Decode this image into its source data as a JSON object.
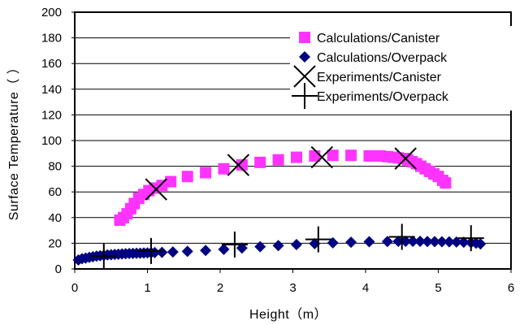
{
  "chart_data": {
    "type": "scatter",
    "title": "",
    "xlabel": "Height（m）",
    "ylabel": "Surface Temperature（ ）",
    "xlim": [
      0,
      6
    ],
    "ylim": [
      0,
      200
    ],
    "x_ticks": [
      "0",
      "1",
      "2",
      "3",
      "4",
      "5",
      "6"
    ],
    "y_ticks": [
      "0",
      "20",
      "40",
      "60",
      "80",
      "100",
      "120",
      "140",
      "160",
      "180",
      "200"
    ],
    "grid": true,
    "legend_position": "top-right",
    "series": [
      {
        "name": "Calculations/Canister",
        "marker": "square",
        "color": "#ff33ff",
        "x": [
          0.62,
          0.67,
          0.72,
          0.77,
          0.82,
          0.88,
          0.95,
          1.02,
          1.1,
          1.2,
          1.32,
          1.55,
          1.8,
          2.05,
          2.3,
          2.55,
          2.8,
          3.05,
          3.3,
          3.55,
          3.8,
          4.05,
          4.2,
          4.3,
          4.38,
          4.45,
          4.52,
          4.58,
          4.64,
          4.7,
          4.76,
          4.82,
          4.88,
          4.94,
          5.0,
          5.06,
          5.1
        ],
        "y": [
          38,
          40,
          43,
          47,
          51,
          55,
          58,
          61,
          63,
          65,
          68,
          72,
          75,
          78,
          81,
          83,
          85,
          87,
          88,
          88.5,
          88.5,
          88,
          88,
          87.5,
          87,
          86.5,
          86,
          85,
          83.5,
          82,
          80,
          78,
          76,
          74,
          72,
          69,
          67
        ]
      },
      {
        "name": "Calculations/Overpack",
        "marker": "diamond",
        "color": "#000080",
        "x": [
          0.05,
          0.1,
          0.15,
          0.2,
          0.25,
          0.3,
          0.35,
          0.4,
          0.45,
          0.5,
          0.55,
          0.6,
          0.65,
          0.7,
          0.75,
          0.8,
          0.85,
          0.9,
          0.95,
          1.0,
          1.05,
          1.1,
          1.2,
          1.35,
          1.55,
          1.8,
          2.05,
          2.3,
          2.55,
          2.8,
          3.05,
          3.3,
          3.55,
          3.8,
          4.05,
          4.3,
          4.45,
          4.55,
          4.65,
          4.75,
          4.85,
          4.95,
          5.05,
          5.15,
          5.25,
          5.35,
          5.45,
          5.52,
          5.58
        ],
        "y": [
          7,
          8,
          8.5,
          9,
          9.5,
          10,
          10.3,
          10.6,
          10.9,
          11.1,
          11.3,
          11.5,
          11.7,
          11.9,
          12,
          12.1,
          12.2,
          12.3,
          12.4,
          12.5,
          12.6,
          12.7,
          12.9,
          13.2,
          13.7,
          14.4,
          15.3,
          16.3,
          17.3,
          18.2,
          19,
          19.7,
          20.3,
          20.8,
          21.2,
          21.4,
          21.5,
          21.5,
          21.5,
          21.5,
          21.4,
          21.3,
          21.2,
          21.1,
          21.0,
          20.8,
          20.5,
          20.1,
          19.5
        ]
      },
      {
        "name": "Experiments/Canister",
        "marker": "x",
        "color": "#000000",
        "x": [
          1.12,
          2.25,
          3.4,
          4.55
        ],
        "y": [
          62,
          81,
          87,
          86
        ]
      },
      {
        "name": "Experiments/Overpack",
        "marker": "plus",
        "color": "#000000",
        "x": [
          0.4,
          1.05,
          2.2,
          3.35,
          4.5,
          5.45
        ],
        "y": [
          10,
          14,
          19,
          23,
          25,
          24
        ]
      }
    ]
  }
}
